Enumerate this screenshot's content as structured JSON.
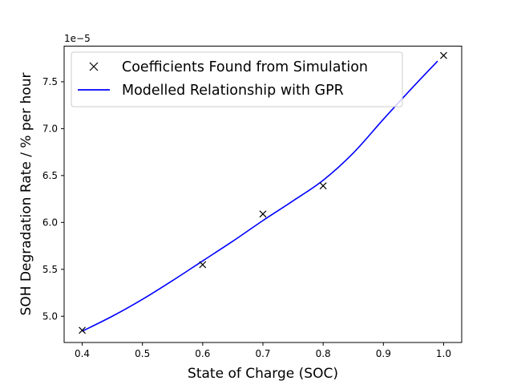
{
  "chart_data": {
    "type": "line",
    "xlabel": "State of Charge (SOC)",
    "ylabel": "SOH Degradation Rate / % per hour",
    "offset_text": "1e−5",
    "xlim": [
      0.37,
      1.03
    ],
    "ylim": [
      4.72,
      7.88
    ],
    "x_ticks": [
      0.4,
      0.5,
      0.6,
      0.7,
      0.8,
      0.9,
      1.0
    ],
    "x_tick_labels": [
      "0.4",
      "0.5",
      "0.6",
      "0.7",
      "0.8",
      "0.9",
      "1.0"
    ],
    "y_ticks": [
      5.0,
      5.5,
      6.0,
      6.5,
      7.0,
      7.5
    ],
    "y_tick_labels": [
      "5.0",
      "5.5",
      "6.0",
      "6.5",
      "7.0",
      "7.5"
    ],
    "grid": false,
    "legend_position": "top-left",
    "series": [
      {
        "name": "Coefficients Found from Simulation",
        "kind": "scatter",
        "marker": "x",
        "color": "#000000",
        "x": [
          0.4,
          0.6,
          0.7,
          0.8,
          1.0
        ],
        "y": [
          4.85,
          5.55,
          6.09,
          6.39,
          7.78
        ]
      },
      {
        "name": "Modelled Relationship with GPR",
        "kind": "line",
        "color": "#0000ff",
        "x": [
          0.4,
          0.45,
          0.5,
          0.55,
          0.6,
          0.65,
          0.7,
          0.75,
          0.8,
          0.85,
          0.9,
          0.95,
          0.99
        ],
        "y": [
          4.84,
          5.0,
          5.18,
          5.38,
          5.59,
          5.8,
          6.02,
          6.23,
          6.45,
          6.74,
          7.1,
          7.45,
          7.72
        ]
      }
    ]
  }
}
